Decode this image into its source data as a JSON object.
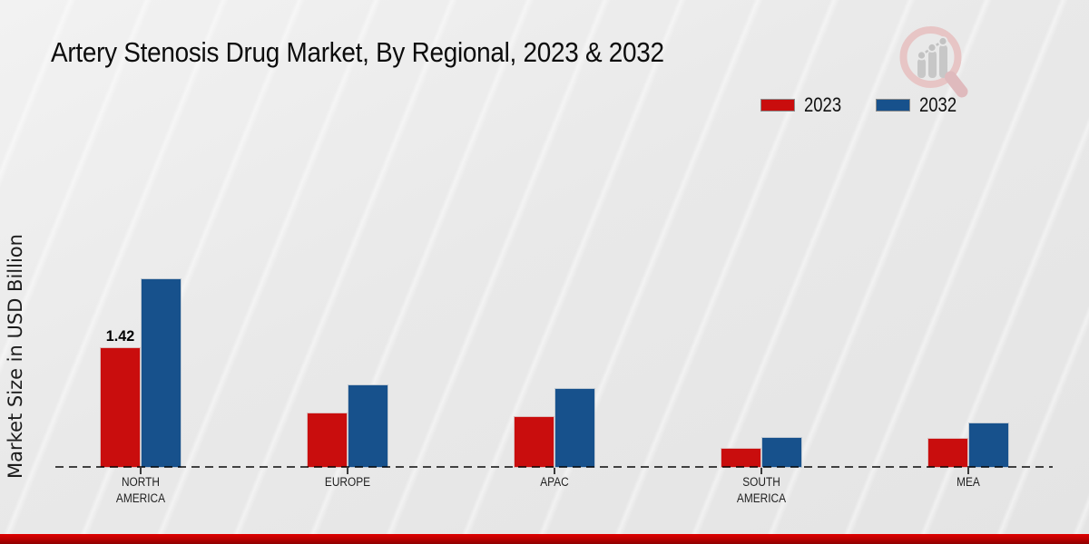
{
  "page": {
    "title": "Artery Stenosis Drug Market, By Regional, 2023 & 2032"
  },
  "y_axis": {
    "label": "Market Size in USD Billion"
  },
  "legend": {
    "items": [
      {
        "label": "2023",
        "color": "#c90d0d"
      },
      {
        "label": "2032",
        "color": "#17518c"
      }
    ]
  },
  "chart_data": {
    "type": "bar",
    "title": "Artery Stenosis Drug Market, By Regional, 2023 & 2032",
    "xlabel": "",
    "ylabel": "Market Size in USD Billion",
    "categories": [
      "NORTH AMERICA",
      "EUROPE",
      "APAC",
      "SOUTH AMERICA",
      "MEA"
    ],
    "series": [
      {
        "name": "2023",
        "color": "#c90d0d",
        "values": [
          1.42,
          0.65,
          0.61,
          0.23,
          0.35
        ]
      },
      {
        "name": "2032",
        "color": "#17518c",
        "values": [
          2.23,
          0.98,
          0.94,
          0.36,
          0.53
        ]
      }
    ],
    "annotations": [
      {
        "series_index": 0,
        "category_index": 0,
        "text": "1.42"
      }
    ],
    "ylim": [
      0,
      2.5
    ],
    "grid": false,
    "baseline_style": "dashed",
    "legend_position": "top-right"
  },
  "branding": {
    "logo_icon": "magnifier-growth-chart-icon",
    "accent_color": "#c00000"
  }
}
